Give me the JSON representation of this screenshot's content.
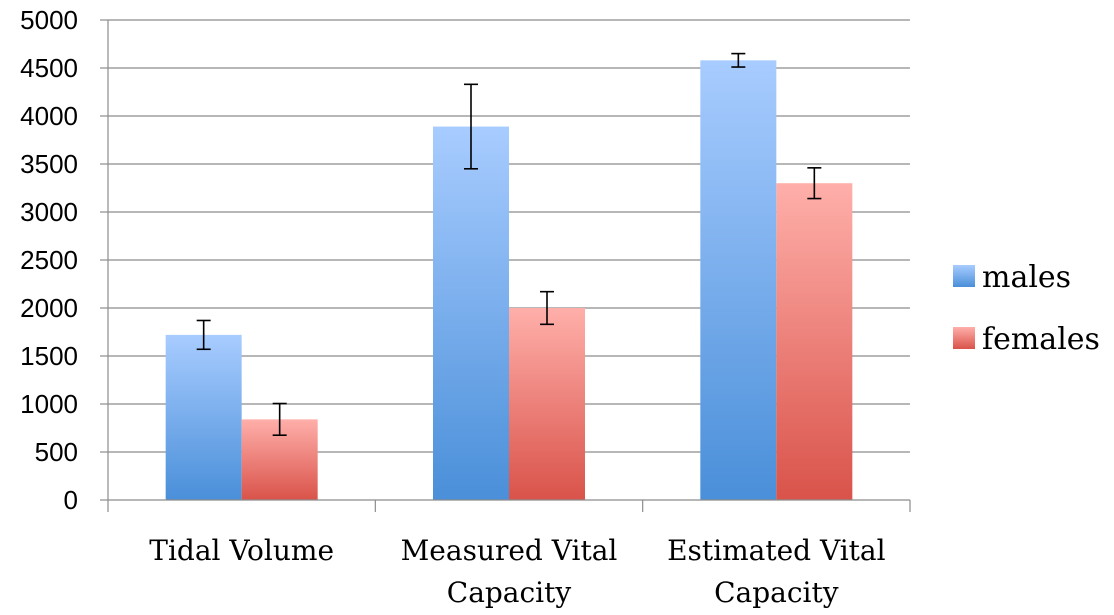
{
  "chart_data": {
    "type": "bar",
    "categories": [
      [
        "Tidal Volume"
      ],
      [
        "Measured Vital",
        "Capacity"
      ],
      [
        "Estimated Vital",
        "Capacity"
      ]
    ],
    "series": [
      {
        "name": "males",
        "values": [
          1720,
          3890,
          4580
        ],
        "error": [
          150,
          440,
          70
        ],
        "color_top": "#a8ccff",
        "color_bottom": "#4a8fd9"
      },
      {
        "name": "females",
        "values": [
          840,
          2000,
          3300
        ],
        "error": [
          165,
          170,
          160
        ],
        "color_top": "#ffafaa",
        "color_bottom": "#d9534a"
      }
    ],
    "y_ticks": [
      0,
      500,
      1000,
      1500,
      2000,
      2500,
      3000,
      3500,
      4000,
      4500,
      5000
    ],
    "ylim": [
      0,
      5000
    ],
    "grid": true,
    "legend_position": "right",
    "title": "",
    "xlabel": "",
    "ylabel": ""
  }
}
